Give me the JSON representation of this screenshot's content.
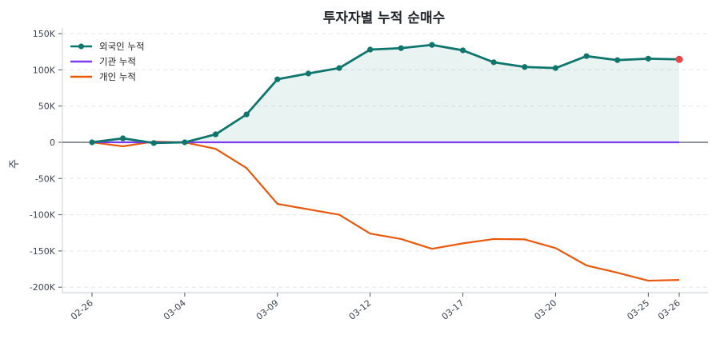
{
  "chart_data": {
    "type": "line",
    "title": "투자자별 누적 순매수",
    "xlabel": "",
    "ylabel": "주",
    "ylim": [
      -207000,
      157000
    ],
    "yticks": [
      150000,
      100000,
      50000,
      0,
      -50000,
      -100000,
      -150000,
      -200000
    ],
    "ytick_labels": [
      "150K",
      "100K",
      "50K",
      "0",
      "-50K",
      "-100K",
      "-150K",
      "-200K"
    ],
    "x": [
      "02-26",
      "02-27",
      "02-28",
      "03-04",
      "03-05",
      "03-06",
      "03-09",
      "03-10",
      "03-11",
      "03-12",
      "03-13",
      "03-14",
      "03-17",
      "03-18",
      "03-19",
      "03-20",
      "03-21",
      "03-24",
      "03-25",
      "03-26"
    ],
    "xtick_labels": [
      "02-26",
      "03-04",
      "03-09",
      "03-12",
      "03-17",
      "03-20",
      "03-25",
      "03-26"
    ],
    "xtick_indices": [
      0,
      3,
      6,
      9,
      12,
      15,
      18,
      19
    ],
    "grid": true,
    "legend_position": "upper left",
    "series": [
      {
        "name": "외국인 누적",
        "color": "#0f766e",
        "marker": true,
        "fill": true,
        "values": [
          0,
          5500,
          -1000,
          0,
          11000,
          38500,
          87000,
          95000,
          102500,
          128000,
          130000,
          134500,
          127000,
          110500,
          104000,
          102500,
          119000,
          113500,
          115500,
          114500
        ]
      },
      {
        "name": "기관 누적",
        "color": "#7c3aed",
        "marker": false,
        "fill": false,
        "values": [
          0,
          0,
          0,
          0,
          0,
          0,
          0,
          0,
          0,
          0,
          0,
          0,
          0,
          0,
          0,
          0,
          0,
          0,
          0,
          0
        ]
      },
      {
        "name": "개인 누적",
        "color": "#ea580c",
        "marker": false,
        "fill": false,
        "values": [
          0,
          -5500,
          1000,
          0,
          -9000,
          -35500,
          -85000,
          -92500,
          -100000,
          -126000,
          -133500,
          -147000,
          -139500,
          -133500,
          -134000,
          -146000,
          -170000,
          -180000,
          -191000,
          -190000
        ]
      }
    ],
    "annotations": [
      {
        "type": "last-point-highlight",
        "series": "외국인 누적",
        "color": "#ef4444"
      }
    ]
  }
}
